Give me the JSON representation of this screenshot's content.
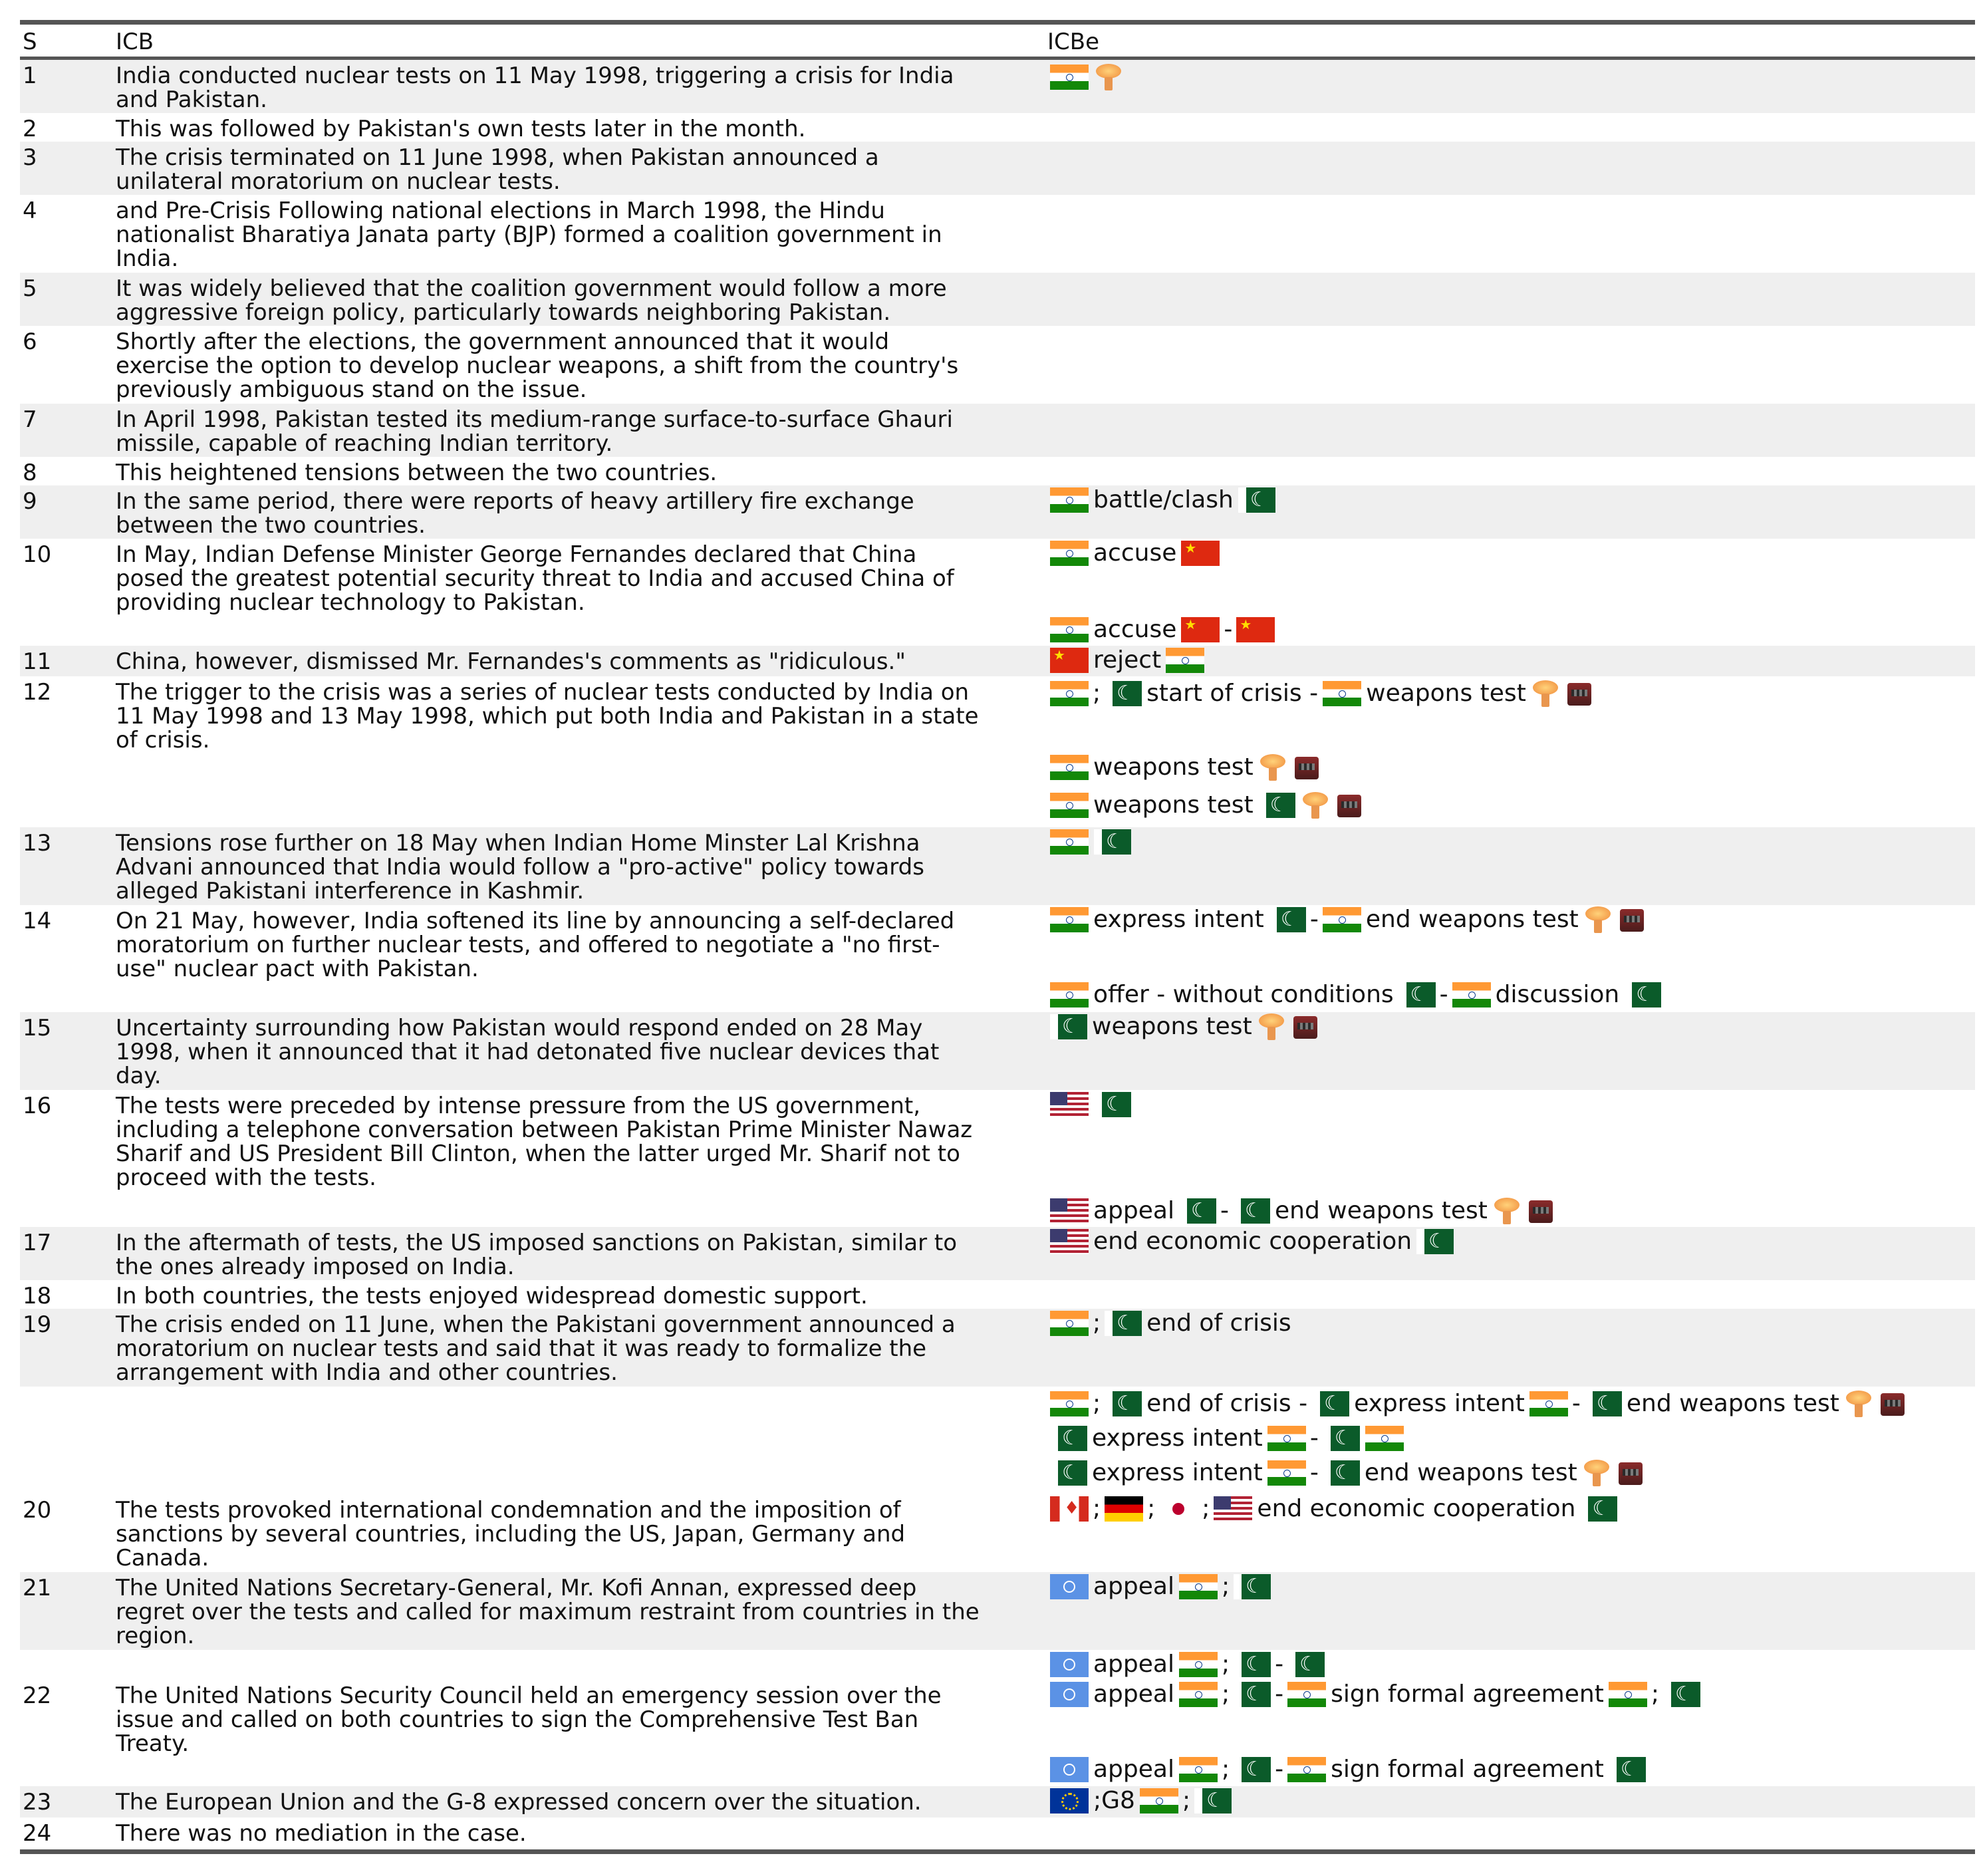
{
  "headers": {
    "s": "S",
    "icb": "ICB",
    "icbe": "ICBe"
  },
  "rows": [
    {
      "s": "1",
      "text": "India conducted nuclear tests on 11 May 1998, triggering a crisis for India\nand Pakistan.",
      "events": [
        [
          "flag:in",
          "icon:nuke"
        ]
      ]
    },
    {
      "s": "2",
      "text": "This was followed by Pakistan's own tests later in the month.",
      "events": []
    },
    {
      "s": "3",
      "text": "The crisis terminated on 11 June 1998, when Pakistan announced a\nunilateral moratorium on nuclear tests.",
      "events": []
    },
    {
      "s": "4",
      "text": "and Pre-Crisis Following national elections in March 1998, the Hindu\nnationalist Bharatiya Janata party (BJP) formed a coalition government in\nIndia.",
      "events": []
    },
    {
      "s": "5",
      "text": "It was widely believed that the coalition government would follow a more\naggressive foreign policy, particularly towards neighboring Pakistan.",
      "events": []
    },
    {
      "s": "6",
      "text": "Shortly after the elections, the government announced that it would\nexercise the option to develop nuclear weapons, a shift from the country's\npreviously ambiguous stand on the issue.",
      "events": []
    },
    {
      "s": "7",
      "text": "In April 1998, Pakistan tested its medium-range surface-to-surface Ghauri\nmissile, capable of reaching Indian territory.",
      "events": []
    },
    {
      "s": "8",
      "text": "This heightened tensions between the two countries.",
      "events": []
    },
    {
      "s": "9",
      "text": "In the same period, there were reports of heavy artillery fire exchange\nbetween the two countries.",
      "events": [
        [
          "flag:in",
          "battle/clash",
          "flag:pk"
        ]
      ]
    },
    {
      "s": "10",
      "text": "In May, Indian Defense Minister George Fernandes declared that China\nposed the greatest potential security threat to India and accused China of\nproviding nuclear technology to Pakistan.",
      "events": [
        [
          "flag:in",
          "accuse",
          "flag:cn"
        ],
        [
          "flag:in",
          "accuse",
          "flag:cn",
          "-",
          "flag:cn"
        ]
      ]
    },
    {
      "s": "11",
      "text": "China, however, dismissed Mr. Fernandes's comments as \"ridiculous.\"",
      "events": [
        [
          "flag:cn",
          "reject",
          "flag:in"
        ]
      ]
    },
    {
      "s": "12",
      "text": "The trigger to the crisis was a series of nuclear tests conducted by India on\n11 May 1998 and 13 May 1998, which put both India and Pakistan in a state\nof crisis.",
      "events": [
        [
          "flag:in",
          ";",
          "flag:pk",
          "start of crisis -",
          "flag:in",
          "weapons test",
          "icon:nuke",
          "icon:bomb"
        ],
        [
          "flag:in",
          "weapons test",
          "icon:nuke",
          "icon:bomb"
        ],
        [
          "flag:in",
          "weapons test",
          "flag:pk",
          "icon:nuke",
          "icon:bomb"
        ]
      ]
    },
    {
      "s": "13",
      "text": "Tensions rose further on 18 May when Indian Home Minster Lal Krishna\nAdvani announced that India would follow a \"pro-active\" policy towards\nalleged Pakistani interference in Kashmir.",
      "events": [
        [
          "flag:in",
          "flag:pk"
        ]
      ]
    },
    {
      "s": "14",
      "text": "On 21 May, however, India softened its line by announcing a self-declared\nmoratorium on further nuclear tests, and offered to negotiate a \"no first-\nuse\" nuclear pact with Pakistan.",
      "events": [
        [
          "flag:in",
          "express intent",
          "flag:pk",
          "-",
          "flag:in",
          "end weapons test",
          "icon:nuke",
          "icon:bomb"
        ],
        [
          "flag:in",
          "offer - without conditions",
          "flag:pk",
          "-",
          "flag:in",
          "discussion",
          "flag:pk"
        ]
      ]
    },
    {
      "s": "15",
      "text": "Uncertainty surrounding how Pakistan would respond ended on 28 May\n1998, when it announced that it had detonated five nuclear devices that\nday.",
      "events": [
        [
          "flag:pk",
          "weapons test",
          "icon:nuke",
          "icon:bomb"
        ]
      ]
    },
    {
      "s": "16",
      "text": "The tests were preceded by intense pressure from the US government,\nincluding a telephone conversation between Pakistan Prime Minister Nawaz\nSharif and US President Bill Clinton, when the latter urged Mr. Sharif not to\nproceed with the tests.",
      "events": [
        [
          "flag:us",
          "flag:pk"
        ],
        [
          "flag:us",
          "appeal",
          "flag:pk",
          "-",
          "flag:pk",
          "end weapons test",
          "icon:nuke",
          "icon:bomb"
        ]
      ]
    },
    {
      "s": "17",
      "text": "In the aftermath of tests, the US imposed sanctions on Pakistan, similar to\nthe ones already imposed on India.",
      "events": [
        [
          "flag:us",
          "end economic cooperation",
          "flag:pk"
        ]
      ]
    },
    {
      "s": "18",
      "text": "In both countries, the tests enjoyed widespread domestic support.",
      "events": []
    },
    {
      "s": "19",
      "text": "The crisis ended on 11 June, when the Pakistani government announced a\nmoratorium on nuclear tests and said that it was ready to formalize the\narrangement with India and other countries.",
      "events": [
        [
          "flag:in",
          ";",
          "flag:pk",
          "end of crisis"
        ]
      ]
    },
    {
      "s": "",
      "text": "",
      "events": [
        [
          "flag:in",
          ";",
          "flag:pk",
          "end of crisis -",
          "flag:pk",
          "express intent",
          "flag:in",
          "-",
          "flag:pk",
          "end weapons test",
          "icon:nuke",
          "icon:bomb"
        ],
        [
          "flag:pk",
          "express intent",
          "flag:in",
          "-",
          "flag:pk",
          "flag:in"
        ],
        [
          "flag:pk",
          "express intent",
          "flag:in",
          "-",
          "flag:pk",
          "end weapons test",
          "icon:nuke",
          "icon:bomb"
        ]
      ]
    },
    {
      "s": "20",
      "text": "The tests provoked international condemnation and the imposition of\nsanctions by several countries, including the US, Japan, Germany and\nCanada.",
      "events": [
        [
          "flag:ca",
          ";",
          "flag:de",
          ";",
          "flag:jp",
          ";",
          "flag:us",
          "end economic cooperation",
          "flag:pk"
        ]
      ]
    },
    {
      "s": "21",
      "text": "The United Nations Secretary-General, Mr. Kofi Annan, expressed deep\nregret over the tests and called for maximum restraint from countries in the\nregion.",
      "events": [
        [
          "flag:un",
          "appeal",
          "flag:in",
          ";",
          "flag:pk"
        ]
      ]
    },
    {
      "s": "",
      "text": "",
      "events": [
        [
          "flag:un",
          "appeal",
          "flag:in",
          ";",
          "flag:pk",
          "-",
          "flag:pk"
        ]
      ]
    },
    {
      "s": "22",
      "text": "The United Nations Security Council held an emergency session over the\nissue and called on both countries to sign the Comprehensive Test Ban\nTreaty.",
      "events": [
        [
          "flag:un",
          "appeal",
          "flag:in",
          ";",
          "flag:pk",
          "-",
          "flag:in",
          "sign formal agreement",
          "flag:in",
          ";",
          "flag:pk"
        ],
        [
          "flag:un",
          "appeal",
          "flag:in",
          ";",
          "flag:pk",
          "-",
          "flag:in",
          "sign formal agreement",
          "flag:pk"
        ]
      ]
    },
    {
      "s": "23",
      "text": "The European Union and the G-8 expressed concern over the situation.",
      "events": [
        [
          "flag:eu",
          ";G8",
          "flag:in",
          ";",
          "flag:pk"
        ]
      ]
    },
    {
      "s": "24",
      "text": "There was no mediation in the case.",
      "events": []
    }
  ],
  "flag_colors": {
    "in": "#ff9933",
    "pk": "#0b5b2a",
    "cn": "#de2910",
    "us": "#b22234",
    "un": "#5b92e5",
    "eu": "#003399"
  }
}
